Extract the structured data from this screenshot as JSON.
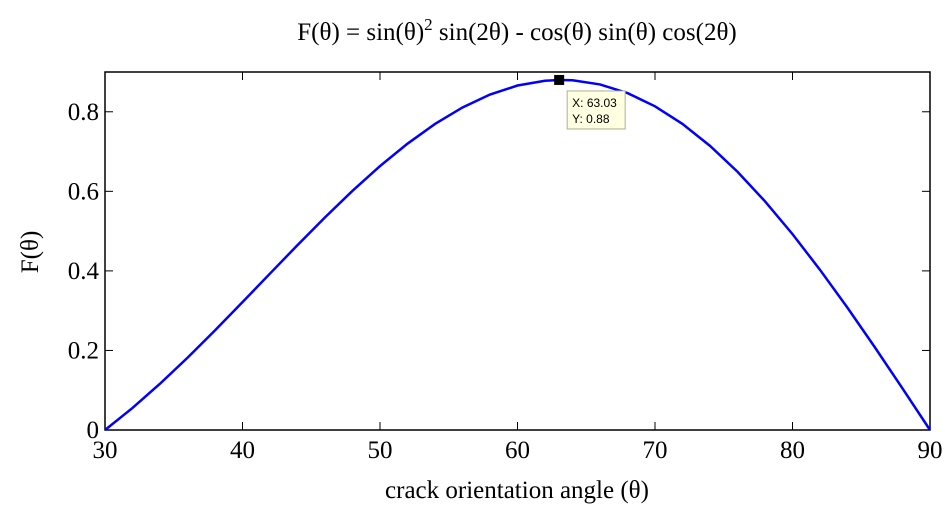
{
  "chart_data": {
    "type": "line",
    "title": {
      "start": "F(θ) = sin(θ)",
      "superscript": "2",
      "end": " sin(2θ) - cos(θ) sin(θ) cos(2θ)"
    },
    "x_label": "crack orientation angle (θ)",
    "y_label": "F(θ)",
    "x": [
      30,
      32,
      34,
      36,
      38,
      40,
      42,
      44,
      46,
      48,
      50,
      52,
      54,
      56,
      58,
      60,
      62,
      63.03,
      64,
      66,
      68,
      70,
      72,
      74,
      76,
      78,
      80,
      82,
      84,
      86,
      88,
      90
    ],
    "series": [
      {
        "name": "F(θ)",
        "color": "#0000ff",
        "values": [
          0,
          0.0554,
          0.1163,
          0.1817,
          0.2504,
          0.3214,
          0.3933,
          0.4648,
          0.5346,
          0.6013,
          0.6634,
          0.7198,
          0.7694,
          0.8109,
          0.8434,
          0.866,
          0.8781,
          0.88,
          0.8792,
          0.8688,
          0.847,
          0.8138,
          0.7694,
          0.7143,
          0.6493,
          0.5749,
          0.4924,
          0.4027,
          0.3073,
          0.2074,
          0.1045,
          0
        ]
      }
    ],
    "xlim": [
      30,
      90
    ],
    "ylim": [
      0,
      0.9
    ],
    "xticks": [
      30,
      40,
      50,
      60,
      70,
      80,
      90
    ],
    "yticks": [
      0,
      0.2,
      0.4,
      0.6,
      0.8
    ],
    "grid": false,
    "datatip": {
      "x": 63.03,
      "y": 0.88,
      "x_text": "X: 63.03",
      "y_text": "Y: 0.88"
    }
  }
}
